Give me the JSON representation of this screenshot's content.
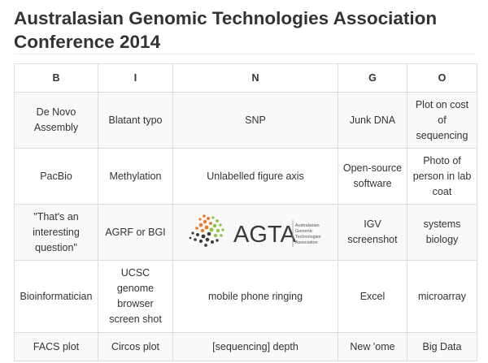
{
  "page": {
    "title": "Australasian Genomic Technologies Association Conference 2014"
  },
  "bingo": {
    "headers": [
      "B",
      "I",
      "N",
      "G",
      "O"
    ],
    "rows": [
      [
        "De Novo Assembly",
        "Blatant typo",
        "SNP",
        "Junk DNA",
        "Plot on cost of sequencing"
      ],
      [
        "PacBio",
        "Methylation",
        "Unlabelled figure axis",
        "Open-source software",
        "Photo of person in lab coat"
      ],
      [
        "\"That's an interesting question\"",
        "AGRF or BGI",
        "",
        "IGV screenshot",
        "systems biology"
      ],
      [
        "Bioinformatician",
        "UCSC genome browser screen shot",
        "mobile phone ringing",
        "Excel",
        "microarray"
      ],
      [
        "FACS plot",
        "Circos plot",
        "[sequencing] depth",
        "New 'ome",
        "Big Data"
      ]
    ],
    "center_logo": {
      "wordmark": "AGTA",
      "tagline_line1": "Australasian",
      "tagline_line2": "Genomic",
      "tagline_line3": "Technologies",
      "tagline_line4": "Association",
      "icon": "agta-dots-logo",
      "colors": {
        "orange": "#f0772a",
        "green": "#8cc63f",
        "dark": "#3a3a3a"
      }
    }
  }
}
